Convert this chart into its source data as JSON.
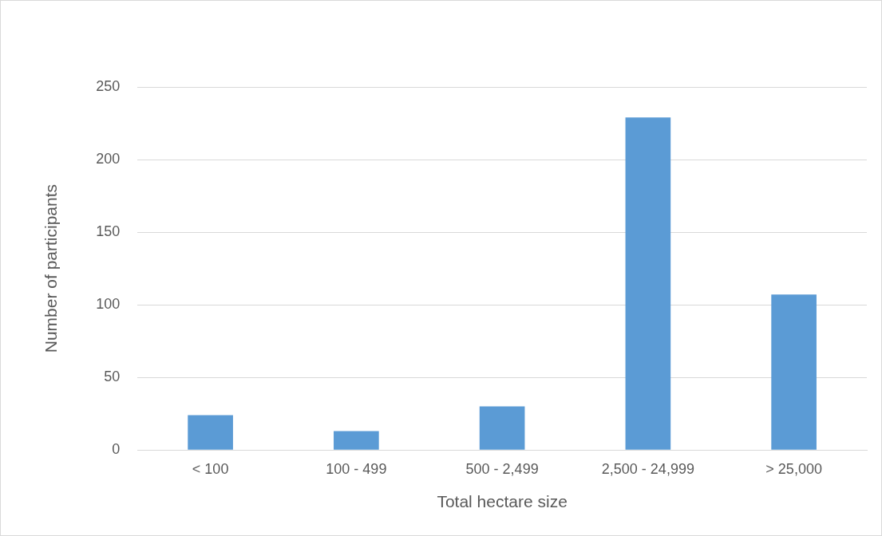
{
  "chart_data": {
    "type": "bar",
    "xlabel": "Total hectare size",
    "ylabel": "Number of participants",
    "categories": [
      "< 100",
      "100 - 499",
      "500 - 2,499",
      "2,500 - 24,999",
      "> 25,000"
    ],
    "values": [
      24,
      13,
      30,
      229,
      107
    ],
    "color": "#5b9bd5",
    "ylim": [
      0,
      250
    ],
    "yticks": [
      0,
      50,
      100,
      150,
      200,
      250
    ],
    "grid": "y",
    "legend": false
  }
}
